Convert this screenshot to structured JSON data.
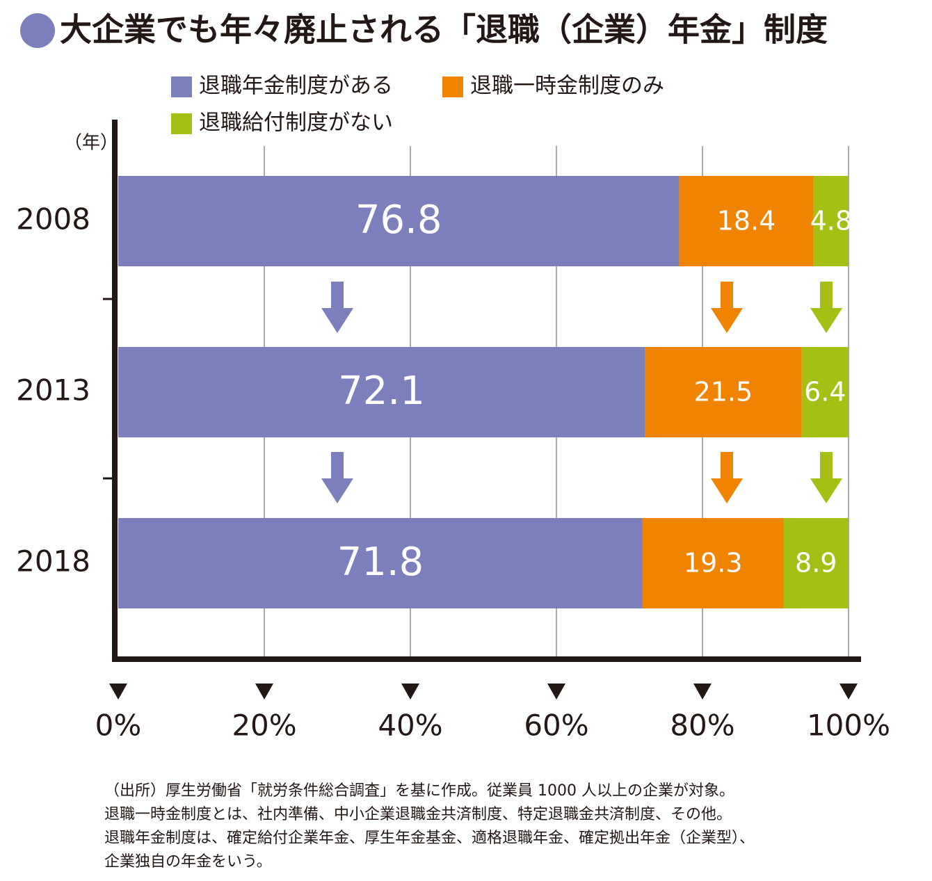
{
  "chart_data": {
    "type": "stacked-bar-horizontal",
    "title": "大企業でも年々廃止される「退職（企業）年金」制度",
    "y_label": "（年）",
    "categories": [
      "2008",
      "2013",
      "2018"
    ],
    "series": [
      {
        "name": "退職年金制度がある",
        "color": "#7b7fbb",
        "values": [
          76.8,
          72.1,
          71.8
        ]
      },
      {
        "name": "退職一時金制度のみ",
        "color": "#f08300",
        "values": [
          18.4,
          21.5,
          19.3
        ]
      },
      {
        "name": "退職給付制度がない",
        "color": "#a5bf14",
        "values": [
          4.8,
          6.4,
          8.9
        ]
      }
    ],
    "xlim": [
      0,
      100
    ],
    "xticks": [
      {
        "value": 0,
        "label": "0%"
      },
      {
        "value": 20,
        "label": "20%"
      },
      {
        "value": 40,
        "label": "40%"
      },
      {
        "value": 60,
        "label": "60%"
      },
      {
        "value": 80,
        "label": "80%"
      },
      {
        "value": 100,
        "label": "100%"
      }
    ],
    "grid": true,
    "notes": [
      "（出所）厚生労働省「就労条件総合調査」を基に作成。従業員 1000 人以上の企業が対象。",
      "退職一時金制度とは、社内準備、中小企業退職金共済制度、特定退職金共済制度、その他。",
      "退職年金制度は、確定給付企業年金、厚生年金基金、適格退職年金、確定拠出年金（企業型）、",
      "企業独自の年金をいう。"
    ]
  }
}
